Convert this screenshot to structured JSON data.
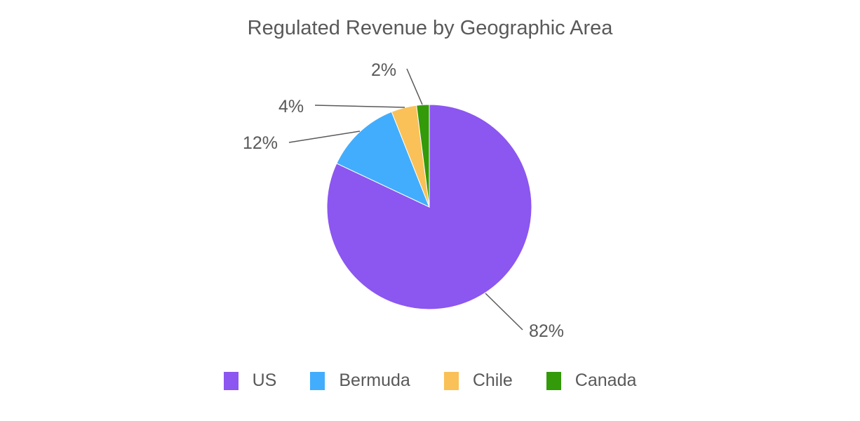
{
  "chart_data": {
    "type": "pie",
    "title": "Regulated Revenue by Geographic Area",
    "categories": [
      "US",
      "Bermuda",
      "Chile",
      "Canada"
    ],
    "values": [
      82,
      12,
      4,
      2
    ],
    "unit": "%",
    "colors": [
      "#8c56f0",
      "#42adfd",
      "#f9c158",
      "#339a09"
    ],
    "labels": [
      "82%",
      "12%",
      "4%",
      "2%"
    ],
    "legend_position": "bottom",
    "start_angle": "top",
    "direction": "clockwise"
  },
  "title": "Regulated Revenue by Geographic Area",
  "legend": [
    {
      "label": "US",
      "color": "#8c56f0"
    },
    {
      "label": "Bermuda",
      "color": "#42adfd"
    },
    {
      "label": "Chile",
      "color": "#f9c158"
    },
    {
      "label": "Canada",
      "color": "#339a09"
    }
  ]
}
